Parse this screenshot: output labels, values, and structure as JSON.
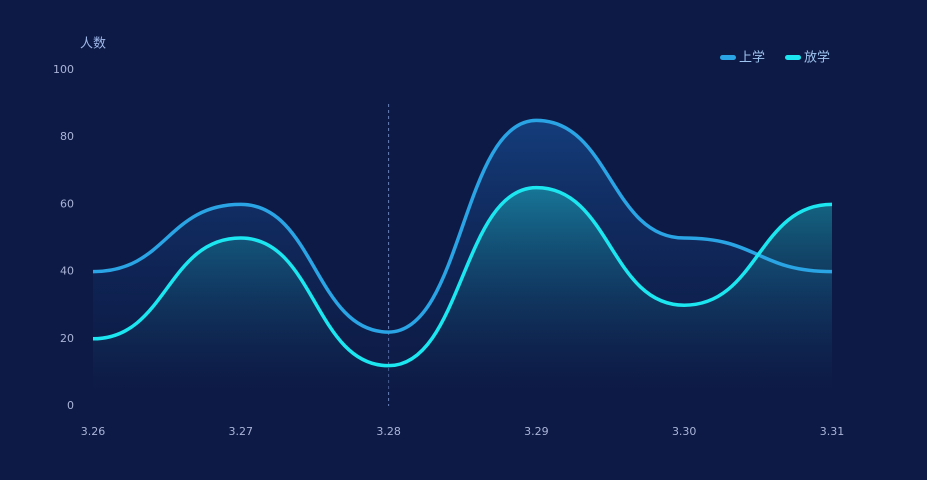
{
  "chart_data": {
    "type": "line",
    "y_axis_name": "人数",
    "categories": [
      "3.26",
      "3.27",
      "3.28",
      "3.29",
      "3.30",
      "3.31"
    ],
    "series": [
      {
        "name": "上学",
        "color": "#2aa4e4",
        "values": [
          40,
          60,
          22,
          85,
          50,
          40
        ]
      },
      {
        "name": "放学",
        "color": "#1ce6f0",
        "values": [
          20,
          50,
          12,
          65,
          30,
          60
        ]
      }
    ],
    "ylim": [
      0,
      100
    ],
    "yticks": [
      0,
      20,
      40,
      60,
      80,
      100
    ],
    "legend": "top-right",
    "pointer_category": 2
  }
}
